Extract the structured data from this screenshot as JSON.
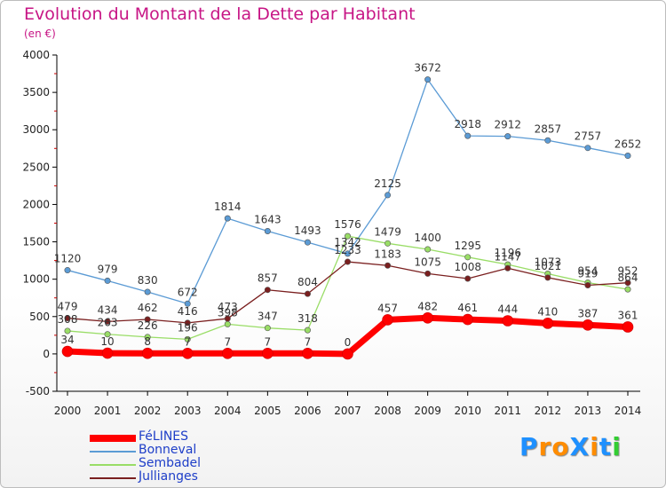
{
  "title": "Evolution du Montant de la Dette par Habitant",
  "subtitle": "(en €)",
  "logo": {
    "text": "ProXiti",
    "letter_colors": [
      "#1e90ff",
      "#ff8c00",
      "#ff8c00",
      "#1e90ff",
      "#ff8c00",
      "#1e90ff",
      "#32cd32"
    ]
  },
  "chart_data": {
    "type": "line",
    "title": "Evolution du Montant de la Dette par Habitant",
    "subtitle": "(en €)",
    "x": [
      "2000",
      "2001",
      "2002",
      "2003",
      "2004",
      "2005",
      "2006",
      "2007",
      "2008",
      "2009",
      "2010",
      "2011",
      "2012",
      "2013",
      "2014"
    ],
    "ylim": [
      -500,
      4000
    ],
    "yticks": [
      -500,
      0,
      500,
      1000,
      1500,
      2000,
      2500,
      3000,
      3500,
      4000
    ],
    "grid": false,
    "legend_position": "bottom-left",
    "series": [
      {
        "name": "FéLINES",
        "color": "#ff0000",
        "thick": true,
        "values": [
          34,
          10,
          8,
          7,
          7,
          7,
          7,
          0,
          457,
          482,
          461,
          444,
          410,
          387,
          361
        ]
      },
      {
        "name": "Bonneval",
        "color": "#5b9bd5",
        "thick": false,
        "values": [
          1120,
          979,
          830,
          672,
          1814,
          1643,
          1493,
          1342,
          2125,
          3672,
          2918,
          2912,
          2857,
          2757,
          2652
        ]
      },
      {
        "name": "Sembadel",
        "color": "#99dd66",
        "thick": false,
        "values": [
          308,
          263,
          226,
          196,
          398,
          347,
          318,
          1576,
          1479,
          1400,
          1295,
          1196,
          1073,
          954,
          864
        ]
      },
      {
        "name": "Jullianges",
        "color": "#7a1f1f",
        "thick": false,
        "values": [
          479,
          434,
          462,
          416,
          473,
          857,
          804,
          1233,
          1183,
          1075,
          1008,
          1147,
          1021,
          919,
          952
        ]
      }
    ]
  }
}
